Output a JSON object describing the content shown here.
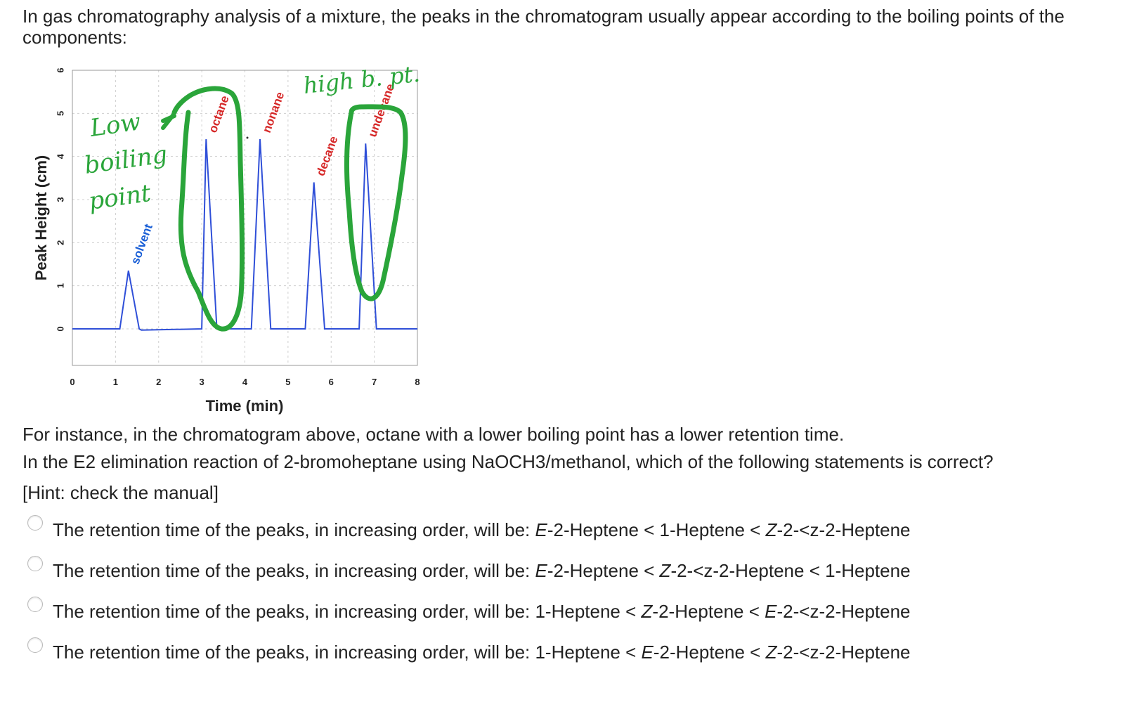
{
  "question": {
    "intro": "In gas chromatography analysis of a mixture, the peaks in the chromatogram usually appear according to the boiling points of the components:",
    "example": "For instance, in the chromatogram above, octane with a lower boiling point has a lower retention time.",
    "prompt": "In the E2 elimination reaction of 2-bromoheptane using NaOCH3/methanol, which of the following statements is correct?",
    "hint": "[Hint: check the manual]",
    "options": [
      {
        "prefix": "The retention time of the peaks, in increasing order, will be: ",
        "a_it": "E",
        "a_rest": "-2-Heptene < 1-Heptene < ",
        "b_it": "Z",
        "b_rest": "-2-<z-2-Heptene"
      },
      {
        "prefix": "The retention time of the peaks, in increasing order, will be: ",
        "a_it": "E",
        "a_rest": "-2-Heptene < ",
        "b_it": "Z",
        "b_rest": "-2-<z-2-Heptene < 1-Heptene"
      },
      {
        "prefix": "The retention time of the peaks, in increasing order, will be: 1-Heptene < ",
        "a_it": "Z",
        "a_rest": "-2-Heptene < ",
        "b_it": "E",
        "b_rest": "-2-<z-2-Heptene"
      },
      {
        "prefix": "The retention time of the peaks, in increasing order, will be: 1-Heptene < ",
        "a_it": "E",
        "a_rest": "-2-Heptene < ",
        "b_it": "Z",
        "b_rest": "-2-<z-2-Heptene"
      }
    ]
  },
  "chart_data": {
    "type": "line",
    "title": "",
    "xlabel": "Time (min)",
    "ylabel": "Peak Height (cm)",
    "xlim": [
      0,
      8
    ],
    "ylim": [
      0,
      6
    ],
    "x_ticks": [
      0,
      1,
      2,
      3,
      4,
      5,
      6,
      7,
      8
    ],
    "y_ticks": [
      0,
      1,
      2,
      3,
      4,
      5,
      6
    ],
    "grid": true,
    "line_color": "#2f4fd8",
    "series": [
      {
        "x": [
          0,
          1.1,
          1.3,
          1.55,
          1.6,
          3.0,
          3.1,
          3.35,
          3.85,
          4.15,
          4.35,
          4.6,
          5.4,
          5.6,
          5.85,
          6.65,
          6.8,
          7.05,
          8
        ],
        "y": [
          0,
          0,
          1.35,
          0,
          -0.03,
          0,
          4.4,
          0,
          0,
          0,
          4.4,
          0,
          0,
          3.4,
          0,
          0,
          4.3,
          0,
          0
        ]
      }
    ],
    "peak_labels": [
      {
        "text": "solvent",
        "x": 1.3,
        "y": 1.35,
        "color": "#1a5fd6"
      },
      {
        "text": "octane",
        "x": 3.1,
        "y": 4.4,
        "color": "#d62828"
      },
      {
        "text": "nonane",
        "x": 4.35,
        "y": 4.4,
        "color": "#d62828"
      },
      {
        "text": "decane",
        "x": 5.6,
        "y": 3.4,
        "color": "#d62828"
      },
      {
        "text": "undecane",
        "x": 6.8,
        "y": 4.3,
        "color": "#d62828"
      }
    ],
    "annotations": [
      {
        "text": "Low boiling point",
        "lines": [
          "Low",
          "boiling",
          "point"
        ],
        "color": "#2aa53a"
      },
      {
        "text": "high b. pt.",
        "color": "#2aa53a"
      }
    ]
  }
}
